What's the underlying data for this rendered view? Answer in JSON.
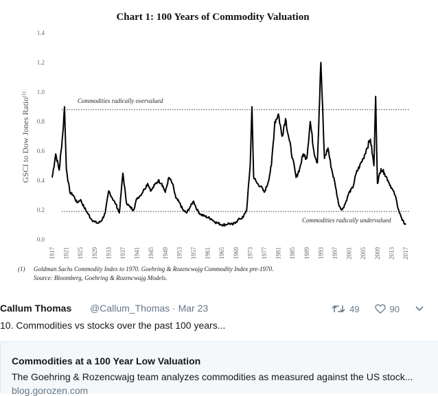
{
  "chart_data": {
    "type": "line",
    "title": "Chart 1: 100 Years of Commodity Valuation",
    "ylabel": "GSCI to Dow Jones Ratio",
    "ylabel_superscript": "(1)",
    "ylim": [
      0.0,
      1.4
    ],
    "yticks": [
      "0.0",
      "0.2",
      "0.4",
      "0.6",
      "0.8",
      "1.0",
      "1.2",
      "1.4"
    ],
    "xlim": [
      1917,
      2017
    ],
    "xticks": [
      "1917",
      "1921",
      "1925",
      "1929",
      "1933",
      "1937",
      "1941",
      "1945",
      "1949",
      "1953",
      "1957",
      "1961",
      "1965",
      "1969",
      "1973",
      "1977",
      "1981",
      "1985",
      "1989",
      "1993",
      "1997",
      "2001",
      "2005",
      "2009",
      "2013",
      "2017"
    ],
    "grid": false,
    "reference_lines": [
      {
        "y": 0.88,
        "label": "Commodities radically overvalued"
      },
      {
        "y": 0.19,
        "label": "Commodities radically undervalued"
      }
    ],
    "series": [
      {
        "x": [
          1917,
          1918,
          1919,
          1920,
          1920.5,
          1921,
          1922,
          1923,
          1924,
          1925,
          1926,
          1927,
          1928,
          1929,
          1930,
          1931,
          1932,
          1933,
          1934,
          1935,
          1936,
          1937,
          1938,
          1939,
          1940,
          1941,
          1942,
          1943,
          1944,
          1945,
          1946,
          1947,
          1948,
          1949,
          1950,
          1951,
          1952,
          1953,
          1954,
          1955,
          1956,
          1957,
          1958,
          1959,
          1960,
          1961,
          1962,
          1963,
          1964,
          1965,
          1966,
          1967,
          1968,
          1969,
          1970,
          1971,
          1972,
          1973,
          1973.5,
          1974,
          1975,
          1976,
          1977,
          1978,
          1979,
          1980,
          1981,
          1982,
          1983,
          1984,
          1985,
          1986,
          1987,
          1988,
          1989,
          1990,
          1991,
          1992,
          1993,
          1994,
          1995,
          1996,
          1997,
          1998,
          1999,
          2000,
          2001,
          2002,
          2003,
          2004,
          2005,
          2006,
          2007,
          2008,
          2008.5,
          2009,
          2010,
          2011,
          2012,
          2013,
          2014,
          2015,
          2016,
          2017
        ],
        "y": [
          0.42,
          0.58,
          0.47,
          0.72,
          0.9,
          0.48,
          0.32,
          0.3,
          0.25,
          0.27,
          0.22,
          0.18,
          0.14,
          0.12,
          0.11,
          0.13,
          0.18,
          0.33,
          0.28,
          0.24,
          0.18,
          0.45,
          0.25,
          0.22,
          0.2,
          0.28,
          0.3,
          0.34,
          0.38,
          0.33,
          0.37,
          0.4,
          0.38,
          0.32,
          0.42,
          0.38,
          0.28,
          0.25,
          0.2,
          0.18,
          0.22,
          0.26,
          0.2,
          0.17,
          0.16,
          0.15,
          0.14,
          0.12,
          0.11,
          0.1,
          0.1,
          0.11,
          0.1,
          0.12,
          0.14,
          0.15,
          0.2,
          0.5,
          0.9,
          0.42,
          0.38,
          0.36,
          0.32,
          0.38,
          0.5,
          0.8,
          0.85,
          0.7,
          0.82,
          0.68,
          0.55,
          0.42,
          0.48,
          0.58,
          0.55,
          0.8,
          0.6,
          0.52,
          1.2,
          0.55,
          0.62,
          0.48,
          0.38,
          0.24,
          0.2,
          0.25,
          0.32,
          0.35,
          0.45,
          0.5,
          0.55,
          0.62,
          0.68,
          0.5,
          0.97,
          0.38,
          0.48,
          0.45,
          0.4,
          0.35,
          0.3,
          0.2,
          0.13,
          0.1
        ]
      }
    ],
    "footnote_marker": "(1)",
    "footnote_line1": "Goldman Sachs Commodity Index to 1970. Goehring & Rozencwajg Commodity Index pre-1970.",
    "footnote_line2": "Source: Bloomberg, Goehring & Rozencwajg Models."
  },
  "tweet": {
    "author_name": "Callum Thomas",
    "author_meta": "@Callum_Thomas · Mar 23",
    "retweet_count": "49",
    "like_count": "90",
    "text": "10. Commodities vs stocks over the past 100 years...",
    "link_card": {
      "title": "Commodities at a 100 Year Low Valuation",
      "description": "The Goehring & Rozencwajg team analyzes commodities as measured against the US stock...",
      "domain": "blog.gorozen.com"
    }
  },
  "icons": {
    "retweet": "retweet-icon",
    "like": "heart-icon",
    "menu": "chevron-down-icon"
  }
}
